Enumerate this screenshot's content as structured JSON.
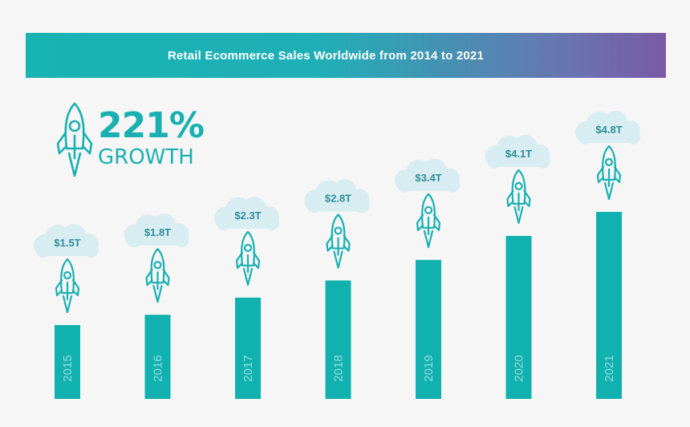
{
  "header": {
    "title": "Retail Ecommerce Sales Worldwide from 2014 to 2021"
  },
  "growth": {
    "percent": "221%",
    "label": "GROWTH"
  },
  "colors": {
    "bar": "#11b1b0",
    "accent": "#1ab0b2",
    "cloud": "#d8edf1",
    "value_text": "#2f8e9b",
    "banner_start": "#18b3b3",
    "banner_end": "#7a5aa6"
  },
  "chart_data": {
    "type": "bar",
    "categories": [
      "2015",
      "2016",
      "2017",
      "2018",
      "2019",
      "2020",
      "2021"
    ],
    "values": [
      1.5,
      1.8,
      2.3,
      2.8,
      3.4,
      4.1,
      4.8
    ],
    "value_labels": [
      "$1.5T",
      "$1.8T",
      "$2.3T",
      "$2.8T",
      "$3.4T",
      "$4.1T",
      "$4.8T"
    ],
    "title": "Retail Ecommerce Sales Worldwide from 2014 to 2021",
    "xlabel": "",
    "ylabel": "",
    "ylim": [
      0,
      4.8
    ],
    "grid": false,
    "legend": "none",
    "icon": "rocket-icon",
    "label_background": "cloud-icon"
  }
}
